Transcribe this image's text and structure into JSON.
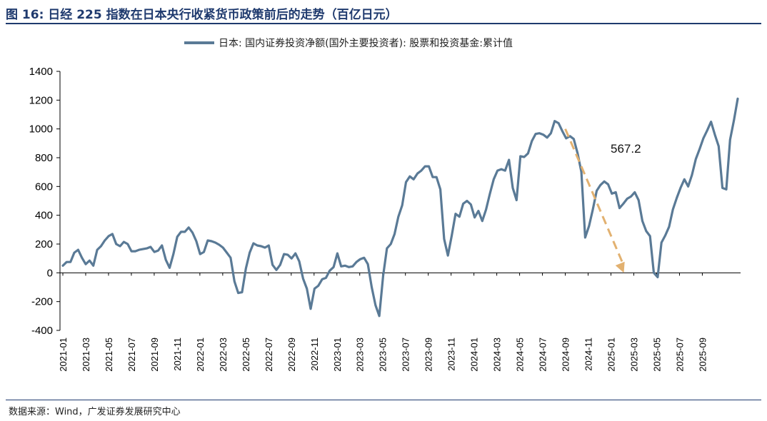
{
  "title": "图 16:  日经 225 指数在日本央行收紧货币政策前后的走势（百亿日元）",
  "source": "数据来源：Wind，广发证券发展研究中心",
  "chart_data": {
    "type": "line",
    "legend_position": "top-center",
    "grid": false,
    "ylim": [
      -400,
      1400
    ],
    "yticks": [
      -400,
      -200,
      0,
      200,
      400,
      600,
      800,
      1000,
      1200,
      1400
    ],
    "xtick_labels": [
      "2021-01",
      "2021-03",
      "2021-05",
      "2021-07",
      "2021-09",
      "2021-11",
      "2022-01",
      "2022-03",
      "2022-05",
      "2022-07",
      "2022-09",
      "2022-11",
      "2023-01",
      "2023-03",
      "2023-05",
      "2023-07",
      "2023-09",
      "2023-11",
      "2024-01",
      "2024-03",
      "2024-05",
      "2024-07",
      "2024-09",
      "2024-11",
      "2025-01",
      "2025-03",
      "2025-05",
      "2025-07",
      "2025-09"
    ],
    "series": [
      {
        "name": "日本: 国内证券投资净额(国外主要投资者): 股票和投资基金:累计值",
        "color": "#5a7a96",
        "values": [
          50,
          75,
          75,
          140,
          160,
          105,
          60,
          85,
          50,
          160,
          185,
          225,
          255,
          270,
          200,
          185,
          215,
          200,
          150,
          150,
          160,
          165,
          170,
          180,
          145,
          155,
          190,
          90,
          35,
          130,
          250,
          285,
          285,
          315,
          280,
          220,
          130,
          145,
          225,
          220,
          210,
          195,
          175,
          140,
          105,
          -60,
          -140,
          -135,
          30,
          140,
          205,
          190,
          185,
          175,
          190,
          55,
          20,
          55,
          130,
          125,
          100,
          135,
          80,
          -40,
          -110,
          -250,
          -110,
          -90,
          -45,
          -35,
          15,
          40,
          135,
          45,
          50,
          40,
          45,
          75,
          95,
          105,
          60,
          -100,
          -225,
          -300,
          -20,
          170,
          200,
          270,
          390,
          470,
          630,
          670,
          650,
          690,
          710,
          740,
          740,
          665,
          665,
          580,
          235,
          120,
          260,
          410,
          390,
          480,
          500,
          475,
          385,
          430,
          360,
          440,
          550,
          650,
          710,
          720,
          710,
          785,
          590,
          505,
          810,
          805,
          830,
          915,
          965,
          970,
          960,
          940,
          970,
          1055,
          1040,
          985,
          935,
          950,
          930,
          830,
          700,
          245,
          325,
          440,
          570,
          610,
          635,
          615,
          550,
          560,
          450,
          480,
          515,
          530,
          560,
          505,
          360,
          290,
          255,
          0,
          -30,
          210,
          260,
          320,
          440,
          520,
          590,
          650,
          600,
          680,
          790,
          860,
          935,
          990,
          1050,
          960,
          880,
          590,
          580,
          925,
          1060,
          1210
        ]
      }
    ],
    "annotations": [
      {
        "text": "567.2",
        "type": "arrow",
        "from": [
          "2024-09",
          1000
        ],
        "to": [
          "2025-03",
          0
        ],
        "color": "#e2b170"
      }
    ]
  }
}
